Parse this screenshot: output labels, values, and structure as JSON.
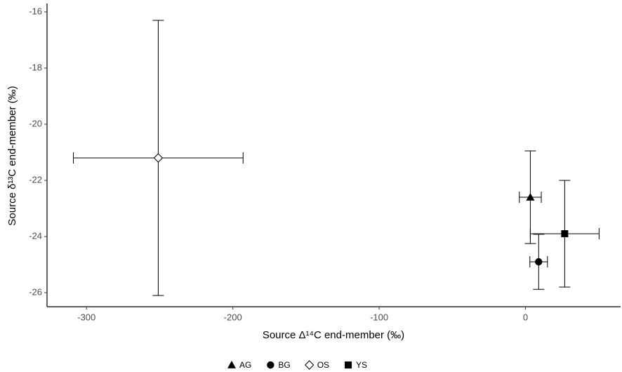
{
  "chart_data": {
    "type": "scatter",
    "x_label": "Source Δ¹⁴C end-member (‰)",
    "y_label": "Source δ¹³C end-member (‰)",
    "xlim": [
      -327,
      65
    ],
    "ylim": [
      -26.5,
      -15.7
    ],
    "xticks": [
      -300,
      -200,
      -100,
      0
    ],
    "yticks": [
      -26,
      -24,
      -22,
      -20,
      -18,
      -16
    ],
    "grid": false,
    "legend": "bottom",
    "series": [
      {
        "name": "AG",
        "marker": "triangle",
        "color": "#000000",
        "x": [
          3.3
        ],
        "y": [
          -22.6
        ],
        "xerr": [
          7.5
        ],
        "yerr": [
          1.65
        ]
      },
      {
        "name": "BG",
        "marker": "circle",
        "color": "#000000",
        "x": [
          9
        ],
        "y": [
          -24.9
        ],
        "xerr": [
          6
        ],
        "yerr": [
          0.98
        ]
      },
      {
        "name": "OS",
        "marker": "diamond",
        "color": "#000000",
        "x": [
          -251
        ],
        "y": [
          -21.2
        ],
        "xerr": [
          58
        ],
        "yerr": [
          4.9
        ]
      },
      {
        "name": "YS",
        "marker": "square",
        "color": "#000000",
        "x": [
          26.8
        ],
        "y": [
          -23.9
        ],
        "xerr": [
          23.5
        ],
        "yerr": [
          1.9
        ]
      }
    ]
  }
}
